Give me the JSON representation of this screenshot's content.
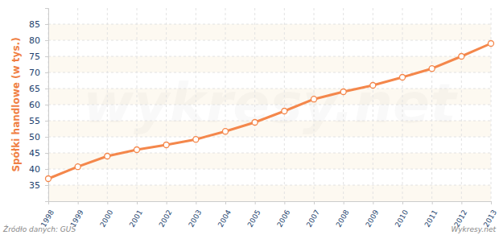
{
  "chart_data": {
    "type": "line",
    "y_label": "Spółki handlowe (w tys.)",
    "categories": [
      "1998",
      "1999",
      "2000",
      "2001",
      "2002",
      "2003",
      "2004",
      "2005",
      "2006",
      "2007",
      "2008",
      "2009",
      "2010",
      "2011",
      "2012",
      "2013"
    ],
    "values": [
      37,
      40.7,
      44,
      46,
      47.5,
      49.2,
      51.7,
      54.5,
      58,
      61.7,
      64,
      66,
      68.5,
      71.2,
      75,
      79
    ],
    "color": "#f4874b",
    "marker": "circle",
    "ylim": [
      30,
      90
    ],
    "yticks": [
      35,
      40,
      45,
      50,
      55,
      60,
      65,
      70,
      75,
      80,
      85
    ],
    "grid": true,
    "annotations": [
      "Źródło danych:  GUS",
      "Wykresy.net",
      "wykresy.net"
    ]
  }
}
